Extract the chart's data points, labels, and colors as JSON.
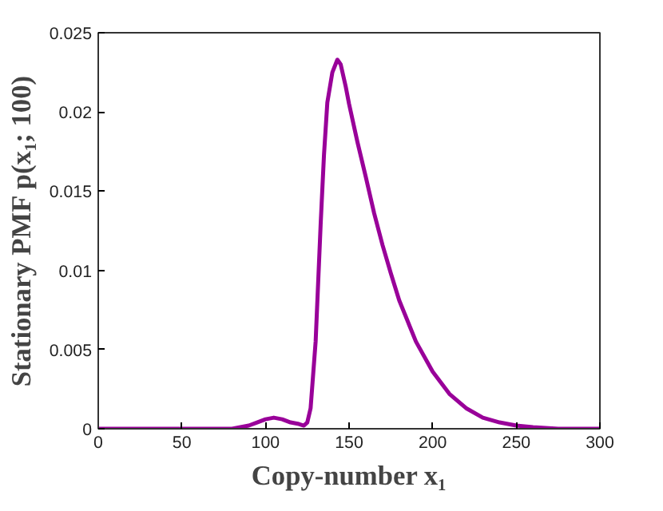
{
  "chart_data": {
    "type": "line",
    "xlabel": "Copy-number x₁",
    "ylabel": "Stationary PMF p(x₁; 100)",
    "x": [
      0,
      20,
      40,
      60,
      80,
      85,
      90,
      95,
      100,
      105,
      110,
      115,
      120,
      123,
      125,
      127,
      130,
      133,
      135,
      137,
      140,
      143,
      145,
      148,
      150,
      155,
      160,
      165,
      170,
      175,
      180,
      190,
      200,
      210,
      220,
      230,
      240,
      250,
      260,
      275,
      300
    ],
    "series": [
      {
        "color": "#990099",
        "values": [
          0,
          0,
          0,
          0,
          0,
          0.0001,
          0.0002,
          0.0004,
          0.0006,
          0.0007,
          0.0006,
          0.0004,
          0.0003,
          0.0002,
          0.0004,
          0.0013,
          0.0055,
          0.0129,
          0.0173,
          0.0206,
          0.0225,
          0.0233,
          0.023,
          0.0216,
          0.0205,
          0.0181,
          0.0159,
          0.0136,
          0.0116,
          0.0098,
          0.0081,
          0.0055,
          0.0036,
          0.0022,
          0.0013,
          0.0007,
          0.0004,
          0.0002,
          0.0001,
          0,
          0
        ]
      }
    ],
    "xlim": [
      0,
      300
    ],
    "xticks": [
      0,
      50,
      100,
      150,
      200,
      250,
      300
    ],
    "ylim": [
      0,
      0.025
    ],
    "yticks": [
      0,
      0.005,
      0.01,
      0.015,
      0.02,
      0.025
    ],
    "grid": false,
    "marker": "none",
    "line_style": "solid"
  }
}
